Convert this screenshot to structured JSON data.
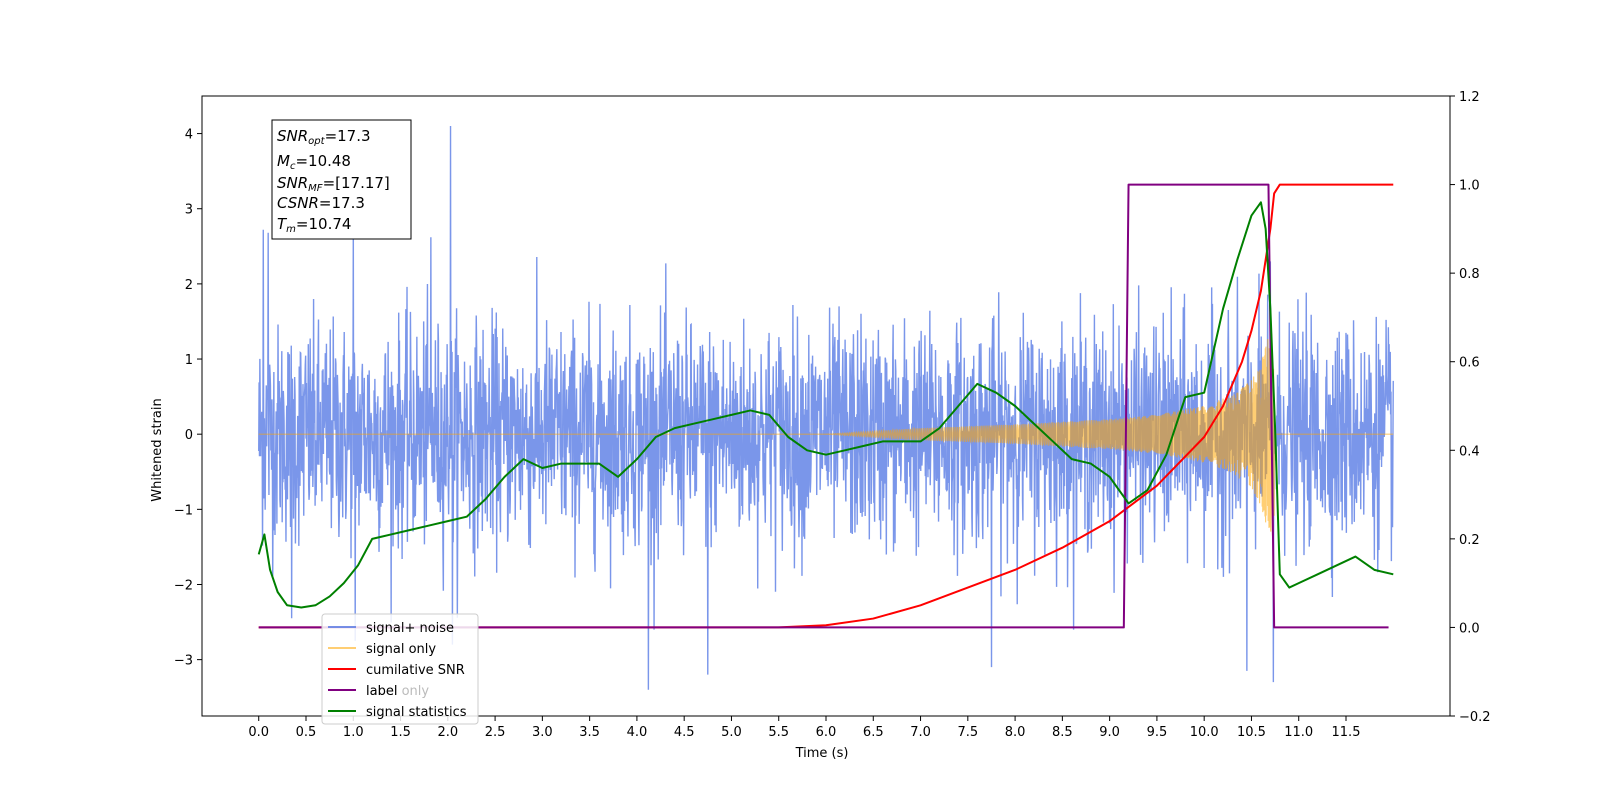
{
  "chart_data": {
    "type": "line",
    "xlabel": "Time (s)",
    "ylabel": "Whitened strain",
    "xlim": [
      -0.6,
      12.6
    ],
    "ylim": [
      -3.75,
      4.5
    ],
    "y2lim": [
      -0.2,
      1.2
    ],
    "x_ticks": [
      "0.0",
      "0.5",
      "1.0",
      "1.5",
      "2.0",
      "2.5",
      "3.0",
      "3.5",
      "4.0",
      "4.5",
      "5.0",
      "5.5",
      "6.0",
      "6.5",
      "7.0",
      "7.5",
      "8.0",
      "8.5",
      "9.0",
      "9.5",
      "10.0",
      "10.5",
      "11.0",
      "11.5"
    ],
    "y_ticks": [
      "−3",
      "−2",
      "−1",
      "0",
      "1",
      "2",
      "3",
      "4"
    ],
    "y2_ticks": [
      "−0.2",
      "0.0",
      "0.2",
      "0.4",
      "0.6",
      "0.8",
      "1.0",
      "1.2"
    ],
    "legend": {
      "position": "lower-left",
      "entries": [
        {
          "label": "signal+ noise",
          "color": "#4169e1"
        },
        {
          "label": "signal only",
          "color": "#ffa500"
        },
        {
          "label": "cumilative SNR",
          "color": "#ff0000"
        },
        {
          "label": "label",
          "color": "#800080"
        },
        {
          "label": "signal statistics",
          "color": "#008000"
        }
      ],
      "overlapped_text": "label only"
    },
    "info_box": {
      "snr_opt": {
        "main": "SNR",
        "sub": "opt",
        "value": "=17.3"
      },
      "mc": {
        "main": "M",
        "sub": "c",
        "value": "=10.48"
      },
      "snr_mf": {
        "main": "SNR",
        "sub": "MF",
        "value": "=[17.17]"
      },
      "csnr": {
        "main": "CSNR",
        "sub": "",
        "value": "=17.3"
      },
      "tm": {
        "main": "T",
        "sub": "m",
        "value": "=10.74"
      }
    },
    "series": [
      {
        "name": "signal+ noise",
        "axis": "left",
        "color": "#4169e1",
        "x_range": [
          0.0,
          12.0
        ],
        "typical_amplitude": 1.6,
        "peak_values": [
          {
            "x": 0.05,
            "y": 2.72
          },
          {
            "x": 0.1,
            "y": 2.68
          },
          {
            "x": 0.35,
            "y": -2.45
          },
          {
            "x": 1.0,
            "y": 2.72
          },
          {
            "x": 1.02,
            "y": -2.75
          },
          {
            "x": 1.82,
            "y": 2.62
          },
          {
            "x": 2.03,
            "y": 4.1
          },
          {
            "x": 2.05,
            "y": -2.8
          },
          {
            "x": 4.12,
            "y": -3.4
          },
          {
            "x": 4.75,
            "y": -3.2
          },
          {
            "x": 7.75,
            "y": -3.1
          },
          {
            "x": 10.45,
            "y": -3.15
          },
          {
            "x": 10.73,
            "y": -3.3
          },
          {
            "x": 10.7,
            "y": 2.3
          }
        ]
      },
      {
        "name": "signal only",
        "axis": "left",
        "color": "#ffa500",
        "x": [
          0.0,
          6.0,
          7.0,
          8.0,
          9.0,
          9.5,
          10.0,
          10.3,
          10.5,
          10.6,
          10.7,
          10.74
        ],
        "envelope": [
          0.0,
          0.0,
          0.08,
          0.13,
          0.2,
          0.26,
          0.38,
          0.52,
          0.72,
          0.95,
          1.4,
          1.75
        ]
      },
      {
        "name": "cumilative SNR",
        "axis": "right",
        "color": "#ff0000",
        "x": [
          0.0,
          5.5,
          6.0,
          6.5,
          7.0,
          7.5,
          8.0,
          8.5,
          9.0,
          9.5,
          10.0,
          10.2,
          10.4,
          10.5,
          10.6,
          10.65,
          10.7,
          10.74,
          10.8,
          12.0
        ],
        "values": [
          0.0,
          0.0,
          0.005,
          0.02,
          0.05,
          0.09,
          0.13,
          0.18,
          0.24,
          0.32,
          0.43,
          0.5,
          0.6,
          0.67,
          0.76,
          0.83,
          0.9,
          0.98,
          1.0,
          1.0
        ]
      },
      {
        "name": "label",
        "axis": "right",
        "color": "#800080",
        "x": [
          0.0,
          9.15,
          9.2,
          10.68,
          10.74,
          11.95
        ],
        "values": [
          0.0,
          0.0,
          1.0,
          1.0,
          0.0,
          0.0
        ]
      },
      {
        "name": "signal statistics",
        "axis": "right",
        "color": "#008000",
        "x": [
          0.0,
          0.06,
          0.12,
          0.2,
          0.3,
          0.45,
          0.6,
          0.75,
          0.9,
          1.05,
          1.2,
          1.4,
          1.6,
          1.8,
          2.0,
          2.2,
          2.4,
          2.6,
          2.8,
          3.0,
          3.2,
          3.4,
          3.6,
          3.8,
          4.0,
          4.2,
          4.4,
          4.6,
          4.8,
          5.0,
          5.2,
          5.4,
          5.6,
          5.8,
          6.0,
          6.2,
          6.4,
          6.6,
          6.8,
          7.0,
          7.2,
          7.4,
          7.6,
          7.8,
          8.0,
          8.2,
          8.4,
          8.6,
          8.8,
          9.0,
          9.2,
          9.4,
          9.6,
          9.8,
          10.0,
          10.2,
          10.35,
          10.5,
          10.6,
          10.65,
          10.7,
          10.75,
          10.8,
          10.9,
          11.0,
          11.2,
          11.4,
          11.6,
          11.8,
          12.0
        ],
        "values": [
          0.165,
          0.21,
          0.13,
          0.08,
          0.05,
          0.045,
          0.05,
          0.07,
          0.1,
          0.14,
          0.2,
          0.21,
          0.22,
          0.23,
          0.24,
          0.25,
          0.29,
          0.34,
          0.38,
          0.36,
          0.37,
          0.37,
          0.37,
          0.34,
          0.38,
          0.43,
          0.45,
          0.46,
          0.47,
          0.48,
          0.49,
          0.48,
          0.43,
          0.4,
          0.39,
          0.4,
          0.41,
          0.42,
          0.42,
          0.42,
          0.45,
          0.5,
          0.55,
          0.53,
          0.5,
          0.46,
          0.42,
          0.38,
          0.37,
          0.34,
          0.28,
          0.31,
          0.39,
          0.52,
          0.53,
          0.72,
          0.83,
          0.93,
          0.96,
          0.9,
          0.72,
          0.45,
          0.12,
          0.09,
          0.1,
          0.12,
          0.14,
          0.16,
          0.13,
          0.12
        ]
      }
    ]
  }
}
